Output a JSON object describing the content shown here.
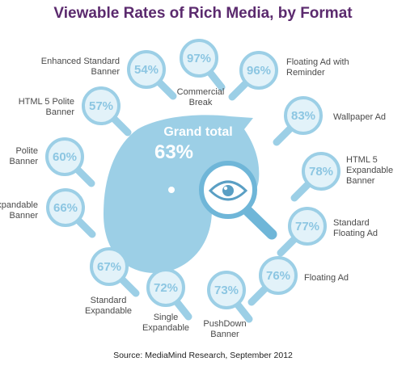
{
  "title": "Viewable Rates of Rich Media, by Format",
  "source": "Source:  MediaMind Research, September 2012",
  "colors": {
    "title": "#5b2a6e",
    "accent": "#9ccfe6",
    "accent_light": "#e2f2f9",
    "accent_dark": "#6fb6d8",
    "value_text": "#8cc6e2",
    "label_text": "#4a4a4a"
  },
  "center": {
    "label": "Grand total",
    "value": "63%",
    "icon": "eye-magnifier-icon"
  },
  "chart_data": {
    "type": "infographic",
    "title": "Viewable Rates of Rich Media, by Format",
    "unit": "%",
    "categories": [
      "Enhanced Standard Banner",
      "Commercial Break",
      "Floating Ad with Reminder",
      "HTML 5 Polite Banner",
      "Wallpaper Ad",
      "Polite Banner",
      "HTML 5 Expandable Banner",
      "Expandable Banner",
      "Standard Floating Ad",
      "Standard Expandable",
      "Floating Ad",
      "Single Expandable",
      "PushDown Banner"
    ],
    "values": [
      54,
      97,
      96,
      57,
      83,
      60,
      78,
      66,
      77,
      67,
      76,
      72,
      73
    ],
    "value_labels": [
      "54%",
      "97%",
      "96%",
      "57%",
      "83%",
      "60%",
      "78%",
      "66%",
      "77%",
      "67%",
      "76%",
      "72%",
      "73%"
    ],
    "grand_total": 63,
    "grand_total_label": "63%"
  }
}
